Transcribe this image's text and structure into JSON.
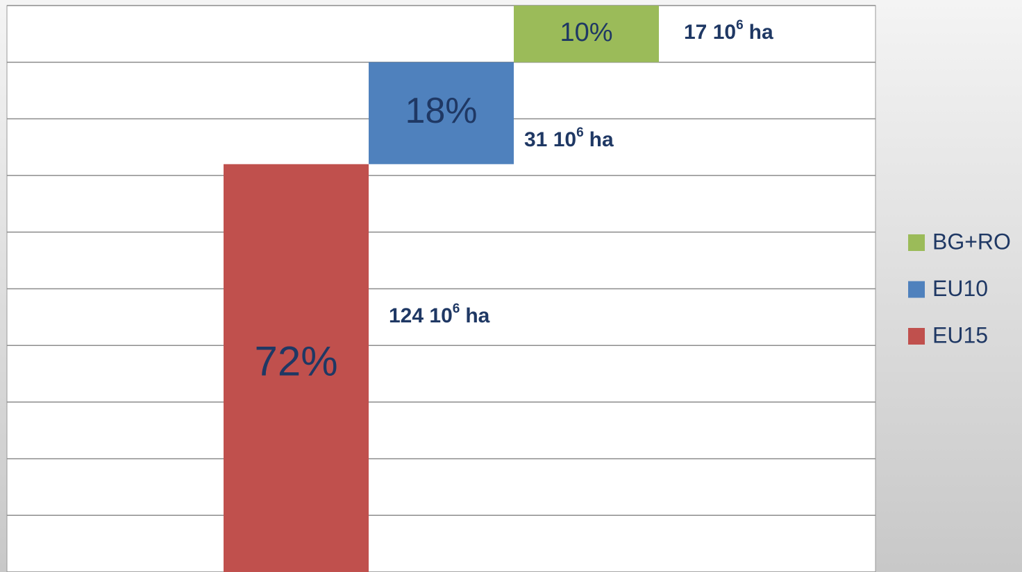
{
  "chart_data": {
    "type": "waterfall",
    "series": [
      {
        "name": "EU15",
        "color": "#c0504d",
        "values": [
          72
        ],
        "value_labels": [
          "72%"
        ]
      },
      {
        "name": "EU10",
        "color": "#4f81bd",
        "values": [
          18
        ],
        "value_labels": [
          "18%"
        ]
      },
      {
        "name": "BG+RO",
        "color": "#9bbb59",
        "values": [
          10
        ],
        "value_labels": [
          "10%"
        ]
      }
    ],
    "annotations": [
      {
        "text": "124 10",
        "sup": "6",
        "after": "ha"
      },
      {
        "text": "31 10",
        "sup": "6",
        "after": "ha"
      },
      {
        "text": "17 10",
        "sup": "6",
        "after": "ha"
      }
    ],
    "ylim": [
      0,
      100
    ],
    "yticks": [
      0,
      10,
      20,
      30,
      40,
      50,
      60,
      70,
      80,
      90,
      100
    ],
    "grid": true,
    "legend": "right"
  }
}
